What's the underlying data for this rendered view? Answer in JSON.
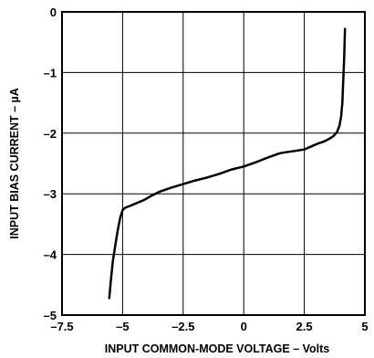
{
  "chart_data": {
    "type": "line",
    "title": "",
    "xlabel": "INPUT COMMON-MODE VOLTAGE – Volts",
    "ylabel": "INPUT BIAS CURRENT – µA",
    "xlim": [
      -7.5,
      5
    ],
    "ylim": [
      -5,
      0
    ],
    "x_ticks": [
      -7.5,
      -5,
      -2.5,
      0,
      2.5,
      5
    ],
    "x_tick_labels": [
      "–7.5",
      "–5",
      "–2.5",
      "0",
      "2.5",
      "5"
    ],
    "y_ticks": [
      0,
      -1,
      -2,
      -3,
      -4,
      -5
    ],
    "y_tick_labels": [
      "0",
      "–1",
      "–2",
      "–3",
      "–4",
      "–5"
    ],
    "grid": true,
    "series": [
      {
        "x": [
          -5.55,
          -5.5,
          -5.45,
          -5.4,
          -5.3,
          -5.2,
          -5.1,
          -5.0,
          -4.9,
          -4.7,
          -4.4,
          -4.1,
          -3.8,
          -3.5,
          -3.0,
          -2.5,
          -2.0,
          -1.5,
          -1.0,
          -0.5,
          0.0,
          0.5,
          1.0,
          1.5,
          2.0,
          2.5,
          3.0,
          3.3,
          3.5,
          3.7,
          3.85,
          3.95,
          4.02,
          4.07,
          4.1,
          4.14,
          4.18
        ],
        "y": [
          -4.72,
          -4.5,
          -4.3,
          -4.1,
          -3.85,
          -3.6,
          -3.4,
          -3.27,
          -3.23,
          -3.2,
          -3.15,
          -3.1,
          -3.03,
          -2.97,
          -2.9,
          -2.84,
          -2.78,
          -2.73,
          -2.67,
          -2.6,
          -2.55,
          -2.48,
          -2.4,
          -2.33,
          -2.3,
          -2.27,
          -2.18,
          -2.14,
          -2.1,
          -2.05,
          -1.98,
          -1.88,
          -1.72,
          -1.5,
          -1.2,
          -0.8,
          -0.28
        ]
      }
    ]
  }
}
